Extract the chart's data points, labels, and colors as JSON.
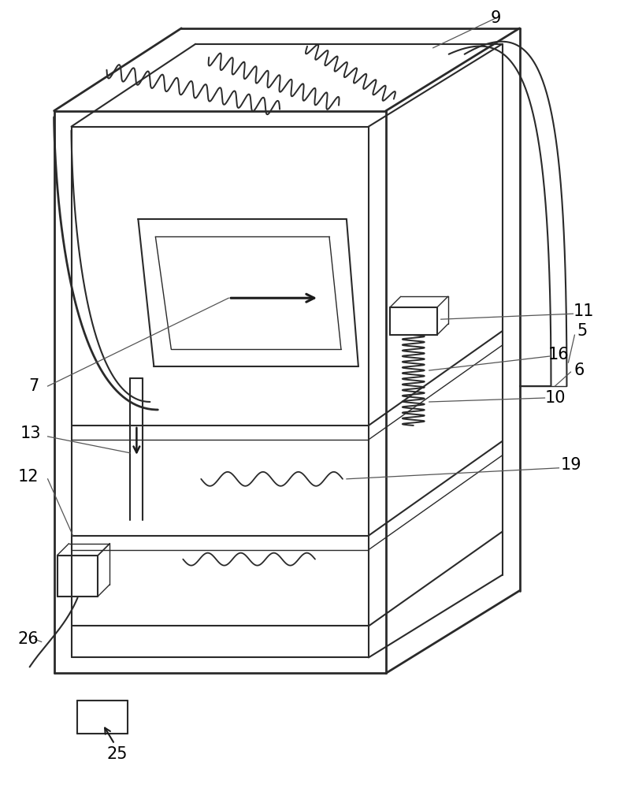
{
  "bg_color": "#ffffff",
  "line_color": "#2a2a2a",
  "lw_thick": 2.0,
  "lw_med": 1.5,
  "lw_thin": 1.0,
  "fig_w": 8.01,
  "fig_h": 10.0
}
